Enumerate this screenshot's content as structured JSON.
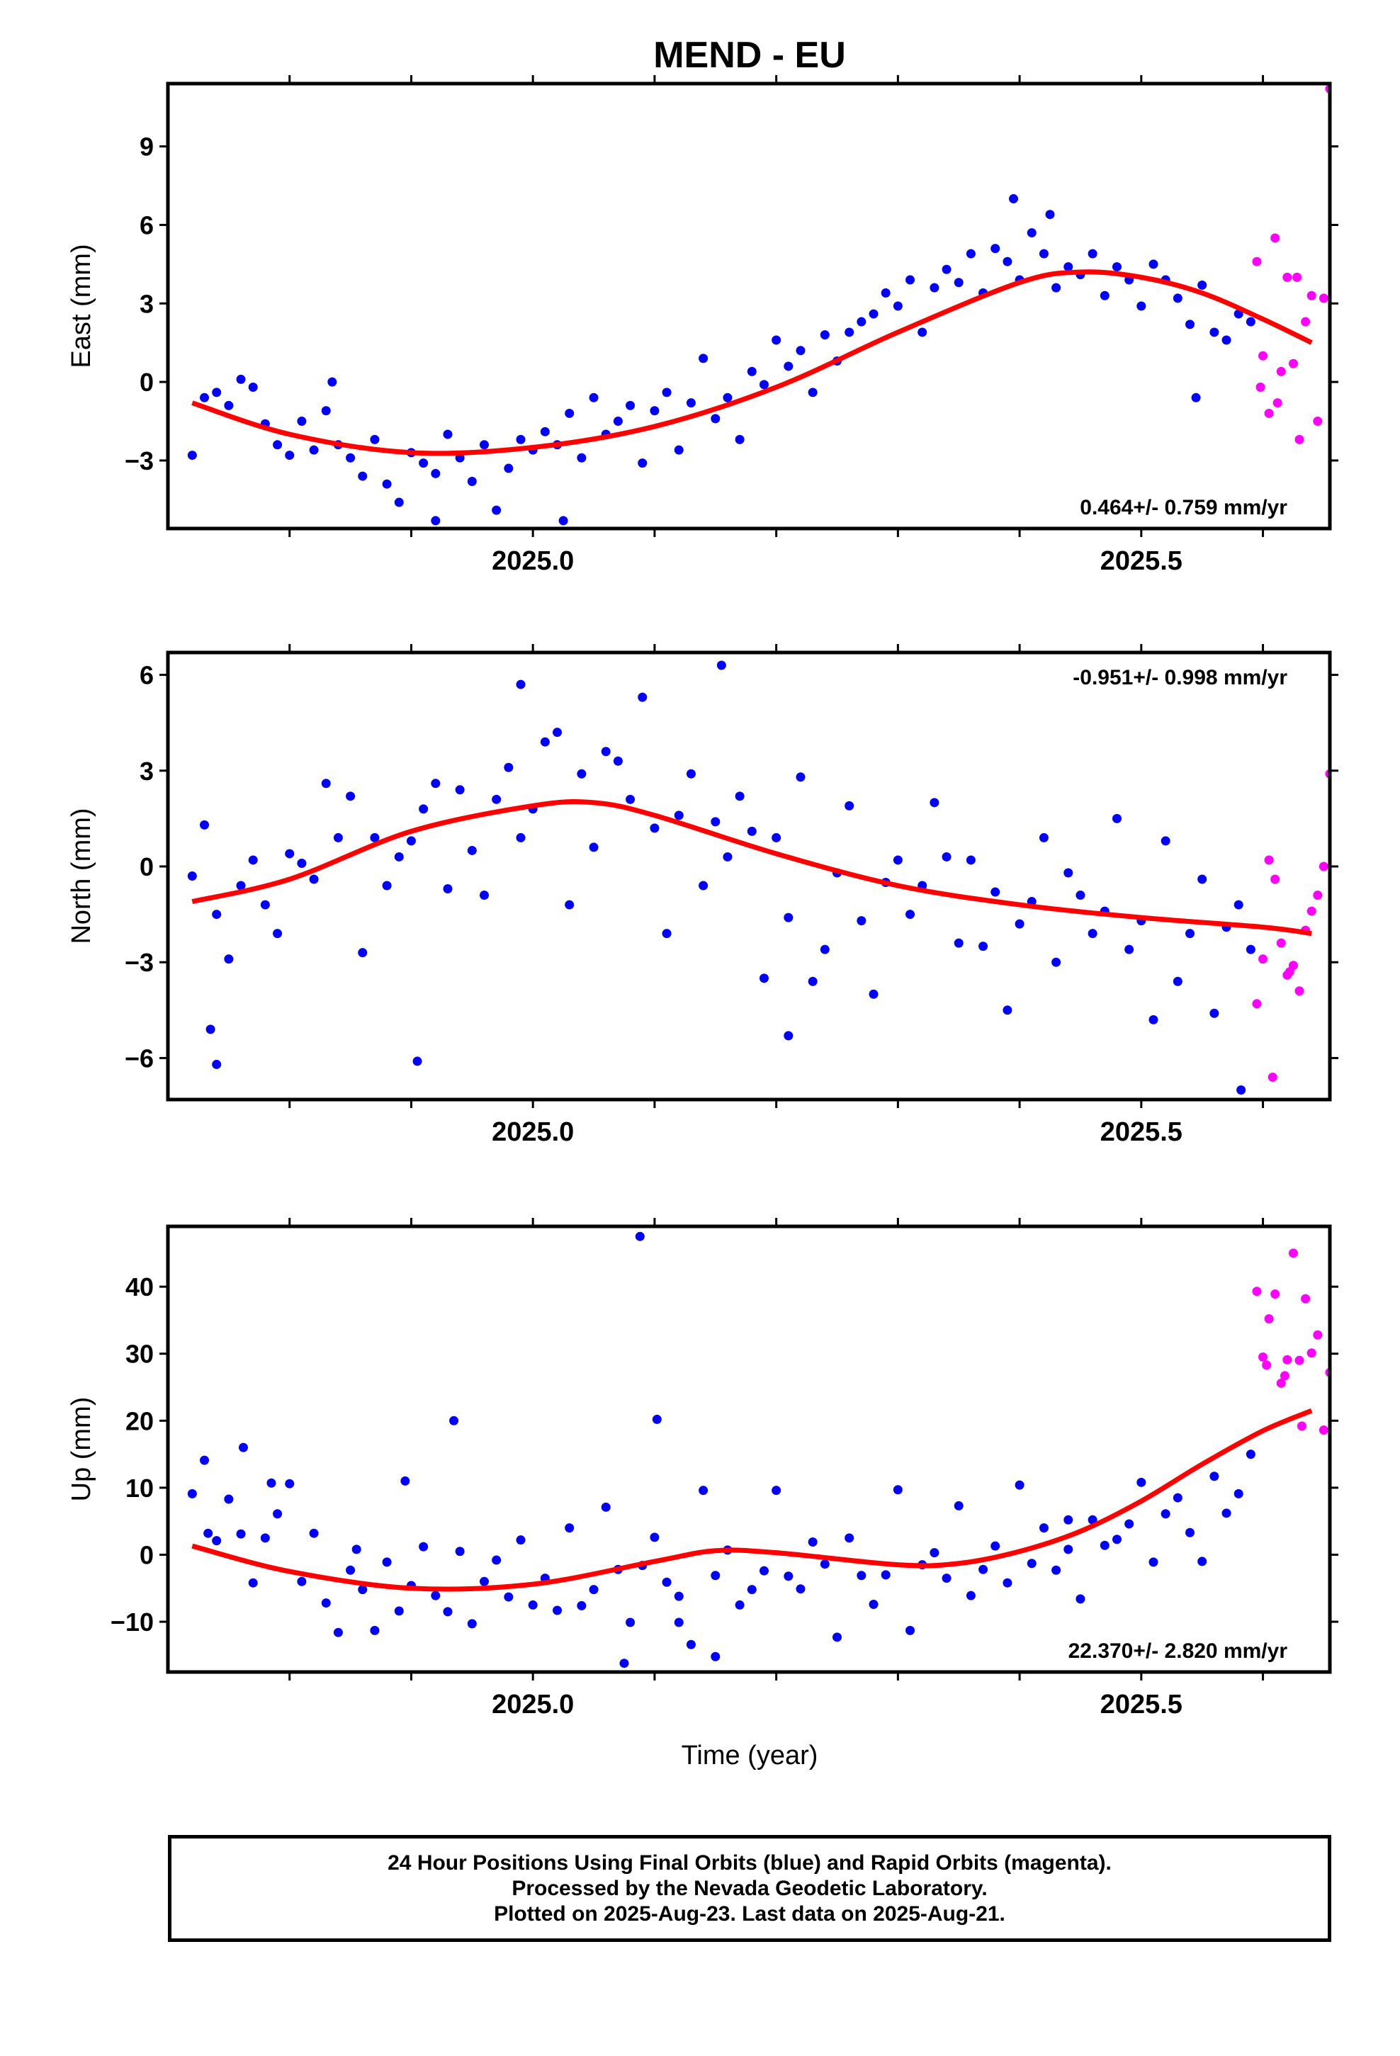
{
  "title": "MEND - EU",
  "xlabel": "Time (year)",
  "footer": {
    "lines": [
      "24 Hour Positions Using Final Orbits (blue) and Rapid Orbits (magenta).",
      "Processed by the Nevada Geodetic Laboratory.",
      "Plotted on 2025-Aug-23. Last data on 2025-Aug-21."
    ]
  },
  "colors": {
    "final": "#0000ff",
    "rapid": "#ff00ff",
    "fit": "#ff0000",
    "frame": "#000000"
  },
  "chart_data": [
    {
      "type": "scatter",
      "ylabel": "East (mm)",
      "rate_label": "0.464+/- 0.759 mm/yr",
      "rate_position": "bottom-right",
      "xlim": [
        2024.7,
        2025.655
      ],
      "ylim": [
        -5.6,
        11.4
      ],
      "xticks_labeled": [
        "2025.0",
        "2025.5"
      ],
      "xticks_minor": [
        2024.8,
        2024.9,
        2025.1,
        2025.2,
        2025.3,
        2025.4,
        2025.6
      ],
      "yticks": [
        "-3",
        "0",
        "3",
        "6",
        "9"
      ],
      "fit": {
        "x": [
          2024.72,
          2024.8,
          2024.9,
          2025.0,
          2025.1,
          2025.2,
          2025.3,
          2025.4,
          2025.45,
          2025.5,
          2025.55,
          2025.6,
          2025.64
        ],
        "y": [
          -0.8,
          -2.0,
          -2.7,
          -2.5,
          -1.7,
          -0.2,
          1.9,
          3.8,
          4.2,
          4.0,
          3.4,
          2.4,
          1.5
        ]
      },
      "series": [
        {
          "orbit": "final",
          "x": [
            2024.72,
            2024.73,
            2024.74,
            2024.75,
            2024.76,
            2024.77,
            2024.78,
            2024.79,
            2024.8,
            2024.81,
            2024.82,
            2024.83,
            2024.84,
            2024.85,
            2024.86,
            2024.87,
            2024.88,
            2024.89,
            2024.9,
            2024.91,
            2024.92,
            2024.93,
            2024.94,
            2024.95,
            2024.96,
            2024.97,
            2024.98,
            2024.99,
            2025.0,
            2025.01,
            2025.02,
            2025.03,
            2025.04,
            2025.05,
            2025.06,
            2025.07,
            2025.08,
            2025.09,
            2025.1,
            2025.11,
            2025.12,
            2025.13,
            2025.14,
            2025.15,
            2025.16,
            2025.17,
            2025.18,
            2025.19,
            2025.2,
            2025.21,
            2025.22,
            2025.23,
            2025.24,
            2025.25,
            2025.26,
            2025.27,
            2025.28,
            2025.29,
            2025.3,
            2025.31,
            2025.32,
            2025.33,
            2025.34,
            2025.35,
            2025.36,
            2025.37,
            2025.38,
            2025.39,
            2025.4,
            2025.41,
            2025.42,
            2025.43,
            2025.44,
            2025.45,
            2025.46,
            2025.47,
            2025.48,
            2025.49,
            2025.5,
            2025.51,
            2025.52,
            2025.53,
            2025.54,
            2025.55,
            2025.56,
            2025.57,
            2025.58,
            2025.59,
            2025.395,
            2025.425,
            2025.545,
            2024.835,
            2024.92,
            2025.025
          ],
          "y": [
            -2.8,
            -0.6,
            -0.4,
            -0.9,
            0.1,
            -0.2,
            -1.6,
            -2.4,
            -2.8,
            -1.5,
            -2.6,
            -1.1,
            -2.4,
            -2.9,
            -3.6,
            -2.2,
            -3.9,
            -4.6,
            -2.7,
            -3.1,
            -3.5,
            -2.0,
            -2.9,
            -3.8,
            -2.4,
            -4.9,
            -3.3,
            -2.2,
            -2.6,
            -1.9,
            -2.4,
            -1.2,
            -2.9,
            -0.6,
            -2.0,
            -1.5,
            -0.9,
            -3.1,
            -1.1,
            -0.4,
            -2.6,
            -0.8,
            0.9,
            -1.4,
            -0.6,
            -2.2,
            0.4,
            -0.1,
            1.6,
            0.6,
            1.2,
            -0.4,
            1.8,
            0.8,
            1.9,
            2.3,
            2.6,
            3.4,
            2.9,
            3.9,
            1.9,
            3.6,
            4.3,
            3.8,
            4.9,
            3.4,
            5.1,
            4.6,
            3.9,
            5.7,
            4.9,
            3.6,
            4.4,
            4.1,
            4.9,
            3.3,
            4.4,
            3.9,
            2.9,
            4.5,
            3.9,
            3.2,
            2.2,
            3.7,
            1.9,
            1.6,
            2.6,
            2.3,
            7.0,
            6.4,
            -0.6,
            0.0,
            -5.3,
            -5.3
          ]
        },
        {
          "orbit": "rapid",
          "x": [
            2025.595,
            2025.6,
            2025.605,
            2025.61,
            2025.615,
            2025.62,
            2025.625,
            2025.63,
            2025.635,
            2025.64,
            2025.645,
            2025.65,
            2025.655,
            2025.598,
            2025.612,
            2025.628
          ],
          "y": [
            4.6,
            1.0,
            -1.2,
            5.5,
            0.4,
            4.0,
            0.7,
            -2.2,
            2.3,
            3.3,
            -1.5,
            3.2,
            11.2,
            -0.2,
            -0.8,
            4.0
          ]
        }
      ]
    },
    {
      "type": "scatter",
      "ylabel": "North (mm)",
      "rate_label": "-0.951+/- 0.998 mm/yr",
      "rate_position": "top-right",
      "xlim": [
        2024.7,
        2025.655
      ],
      "ylim": [
        -7.3,
        6.7
      ],
      "xticks_labeled": [
        "2025.0",
        "2025.5"
      ],
      "xticks_minor": [
        2024.8,
        2024.9,
        2025.1,
        2025.2,
        2025.3,
        2025.4,
        2025.6
      ],
      "yticks": [
        "-6",
        "-3",
        "0",
        "3",
        "6"
      ],
      "fit": {
        "x": [
          2024.72,
          2024.8,
          2024.9,
          2025.0,
          2025.05,
          2025.1,
          2025.2,
          2025.3,
          2025.4,
          2025.5,
          2025.6,
          2025.64
        ],
        "y": [
          -1.1,
          -0.4,
          1.1,
          1.9,
          2.0,
          1.6,
          0.4,
          -0.6,
          -1.2,
          -1.6,
          -1.9,
          -2.1
        ]
      },
      "series": [
        {
          "orbit": "final",
          "x": [
            2024.72,
            2024.73,
            2024.74,
            2024.75,
            2024.76,
            2024.77,
            2024.78,
            2024.79,
            2024.8,
            2024.81,
            2024.82,
            2024.83,
            2024.84,
            2024.85,
            2024.86,
            2024.87,
            2024.88,
            2024.89,
            2024.9,
            2024.91,
            2024.92,
            2024.93,
            2024.94,
            2024.95,
            2024.96,
            2024.97,
            2024.98,
            2024.99,
            2025.0,
            2025.01,
            2025.02,
            2025.03,
            2025.04,
            2025.05,
            2025.06,
            2025.07,
            2025.08,
            2025.09,
            2025.1,
            2025.11,
            2025.12,
            2025.13,
            2025.14,
            2025.15,
            2025.16,
            2025.17,
            2025.18,
            2025.19,
            2025.2,
            2025.21,
            2025.22,
            2025.23,
            2025.24,
            2025.25,
            2025.26,
            2025.27,
            2025.28,
            2025.29,
            2025.3,
            2025.31,
            2025.32,
            2025.33,
            2025.34,
            2025.35,
            2025.36,
            2025.37,
            2025.38,
            2025.39,
            2025.4,
            2025.41,
            2025.42,
            2025.43,
            2025.44,
            2025.45,
            2025.46,
            2025.47,
            2025.48,
            2025.49,
            2025.5,
            2025.51,
            2025.52,
            2025.53,
            2025.54,
            2025.55,
            2025.56,
            2025.57,
            2025.58,
            2025.59,
            2024.735,
            2024.74,
            2024.905,
            2024.99,
            2025.155,
            2025.21,
            2025.582
          ],
          "y": [
            -0.3,
            1.3,
            -1.5,
            -2.9,
            -0.6,
            0.2,
            -1.2,
            -2.1,
            0.4,
            0.1,
            -0.4,
            2.6,
            0.9,
            2.2,
            -2.7,
            0.9,
            -0.6,
            0.3,
            0.8,
            1.8,
            2.6,
            -0.7,
            2.4,
            0.5,
            -0.9,
            2.1,
            3.1,
            0.9,
            1.8,
            3.9,
            4.2,
            -1.2,
            2.9,
            0.6,
            3.6,
            3.3,
            2.1,
            5.3,
            1.2,
            -2.1,
            1.6,
            2.9,
            -0.6,
            1.4,
            0.3,
            2.2,
            1.1,
            -3.5,
            0.9,
            -1.6,
            2.8,
            -3.6,
            -2.6,
            -0.2,
            1.9,
            -1.7,
            -4.0,
            -0.5,
            0.2,
            -1.5,
            -0.6,
            2.0,
            0.3,
            -2.4,
            0.2,
            -2.5,
            -0.8,
            -4.5,
            -1.8,
            -1.1,
            0.9,
            -3.0,
            -0.2,
            -0.9,
            -2.1,
            -1.4,
            1.5,
            -2.6,
            -1.7,
            -4.8,
            0.8,
            -3.6,
            -2.1,
            -0.4,
            -4.6,
            -1.9,
            -1.2,
            -2.6,
            -5.1,
            -6.2,
            -6.1,
            5.7,
            6.3,
            -5.3,
            -7.0
          ]
        },
        {
          "orbit": "rapid",
          "x": [
            2025.595,
            2025.6,
            2025.605,
            2025.61,
            2025.615,
            2025.62,
            2025.625,
            2025.63,
            2025.635,
            2025.64,
            2025.645,
            2025.65,
            2025.655,
            2025.608,
            2025.622
          ],
          "y": [
            -4.3,
            -2.9,
            0.2,
            -0.4,
            -2.4,
            -3.4,
            -3.1,
            -3.9,
            -2.0,
            -1.4,
            -0.9,
            0.0,
            2.9,
            -6.6,
            -3.3
          ]
        }
      ]
    },
    {
      "type": "scatter",
      "ylabel": "Up (mm)",
      "rate_label": "22.370+/- 2.820 mm/yr",
      "rate_position": "bottom-right",
      "xlim": [
        2024.7,
        2025.655
      ],
      "ylim": [
        -17.5,
        49.0
      ],
      "xticks_labeled": [
        "2025.0",
        "2025.5"
      ],
      "xticks_minor": [
        2024.8,
        2024.9,
        2025.1,
        2025.2,
        2025.3,
        2025.4,
        2025.6
      ],
      "yticks": [
        "-10",
        "0",
        "10",
        "20",
        "30",
        "40"
      ],
      "fit": {
        "x": [
          2024.72,
          2024.8,
          2024.9,
          2025.0,
          2025.1,
          2025.15,
          2025.2,
          2025.3,
          2025.35,
          2025.4,
          2025.45,
          2025.5,
          2025.55,
          2025.6,
          2025.64
        ],
        "y": [
          1.3,
          -2.5,
          -5.0,
          -4.4,
          -1.0,
          0.6,
          0.3,
          -1.5,
          -1.3,
          0.5,
          3.5,
          8.0,
          13.5,
          18.5,
          21.5
        ]
      },
      "series": [
        {
          "orbit": "final",
          "x": [
            2024.72,
            2024.73,
            2024.74,
            2024.75,
            2024.76,
            2024.77,
            2024.78,
            2024.79,
            2024.8,
            2024.81,
            2024.82,
            2024.83,
            2024.84,
            2024.85,
            2024.86,
            2024.87,
            2024.88,
            2024.89,
            2024.9,
            2024.91,
            2024.92,
            2024.93,
            2024.94,
            2024.95,
            2024.96,
            2024.97,
            2024.98,
            2024.99,
            2025.0,
            2025.01,
            2025.02,
            2025.03,
            2025.04,
            2025.05,
            2025.06,
            2025.07,
            2025.08,
            2025.09,
            2025.1,
            2025.11,
            2025.12,
            2025.13,
            2025.14,
            2025.15,
            2025.16,
            2025.17,
            2025.18,
            2025.19,
            2025.2,
            2025.21,
            2025.22,
            2025.23,
            2025.24,
            2025.25,
            2025.26,
            2025.27,
            2025.28,
            2025.29,
            2025.3,
            2025.31,
            2025.32,
            2025.33,
            2025.34,
            2025.35,
            2025.36,
            2025.37,
            2025.38,
            2025.39,
            2025.4,
            2025.41,
            2025.42,
            2025.43,
            2025.44,
            2025.45,
            2025.46,
            2025.47,
            2025.48,
            2025.49,
            2025.5,
            2025.51,
            2025.52,
            2025.53,
            2025.54,
            2025.55,
            2025.56,
            2025.57,
            2025.58,
            2025.59,
            2024.733,
            2024.762,
            2024.785,
            2024.855,
            2024.895,
            2024.935,
            2025.075,
            2025.088,
            2025.102,
            2025.12,
            2025.15,
            2025.44
          ],
          "y": [
            9.1,
            14.1,
            2.1,
            8.3,
            3.1,
            -4.2,
            2.5,
            6.1,
            10.6,
            -4.0,
            3.2,
            -7.2,
            -11.6,
            -2.3,
            -5.2,
            -11.3,
            -1.1,
            -8.4,
            -4.6,
            1.2,
            -6.1,
            -8.5,
            0.5,
            -10.3,
            -4.0,
            -0.8,
            -6.3,
            2.2,
            -7.5,
            -3.5,
            -8.3,
            4.0,
            -7.6,
            -5.2,
            7.1,
            -2.2,
            -10.1,
            -1.6,
            2.6,
            -4.1,
            -6.2,
            -13.4,
            9.6,
            -3.1,
            0.7,
            -7.5,
            -5.2,
            -2.4,
            9.6,
            -3.2,
            -5.1,
            1.9,
            -1.4,
            -12.3,
            2.5,
            -3.1,
            -7.4,
            -3.0,
            9.7,
            -11.3,
            -1.5,
            0.3,
            -3.5,
            7.3,
            -6.1,
            -2.2,
            1.3,
            -4.2,
            10.4,
            -1.3,
            4.0,
            -2.3,
            0.8,
            -6.6,
            5.2,
            1.4,
            2.3,
            4.6,
            10.8,
            -1.1,
            6.1,
            8.5,
            3.3,
            -1.0,
            11.7,
            6.2,
            9.1,
            15.0,
            3.2,
            16.0,
            10.7,
            0.8,
            11.0,
            20.0,
            -16.2,
            47.5,
            20.2,
            -10.1,
            -15.2,
            5.2
          ]
        },
        {
          "orbit": "rapid",
          "x": [
            2025.595,
            2025.6,
            2025.605,
            2025.61,
            2025.615,
            2025.62,
            2025.625,
            2025.63,
            2025.635,
            2025.64,
            2025.645,
            2025.65,
            2025.655,
            2025.603,
            2025.618,
            2025.632
          ],
          "y": [
            39.3,
            29.5,
            35.2,
            38.9,
            25.6,
            29.1,
            45.0,
            29.0,
            38.2,
            30.1,
            32.8,
            18.6,
            27.2,
            28.3,
            26.7,
            19.2
          ]
        }
      ]
    }
  ]
}
